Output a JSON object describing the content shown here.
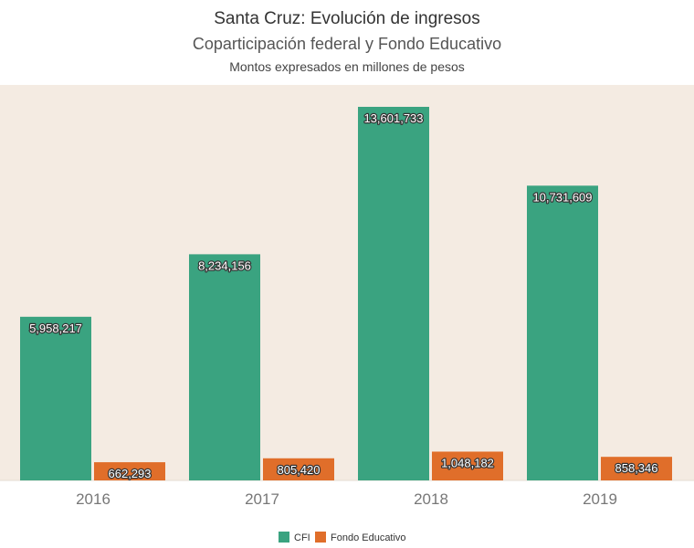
{
  "chart_data": {
    "type": "bar",
    "title": "Santa Cruz: Evolución de ingresos",
    "subtitle": "Coparticipación federal y Fondo Educativo",
    "note": "Montos expresados en millones de pesos",
    "categories": [
      "2016",
      "2017",
      "2018",
      "2019"
    ],
    "series": [
      {
        "name": "CFI",
        "color": "#3aa380",
        "values": [
          5958217,
          8234156,
          13601733,
          10731609
        ],
        "labels": [
          "5,958,217",
          "8,234,156",
          "13,601,733",
          "10,731,609"
        ]
      },
      {
        "name": "Fondo Educativo",
        "color": "#e06e2a",
        "values": [
          662293,
          805420,
          1048182,
          858346
        ],
        "labels": [
          "662,293",
          "805,420",
          "1,048,182",
          "858,346"
        ]
      }
    ],
    "ylim": [
      0,
      14000000
    ],
    "grid": false,
    "legend": "bottom-center",
    "plot_background": "#f4ebe2"
  }
}
